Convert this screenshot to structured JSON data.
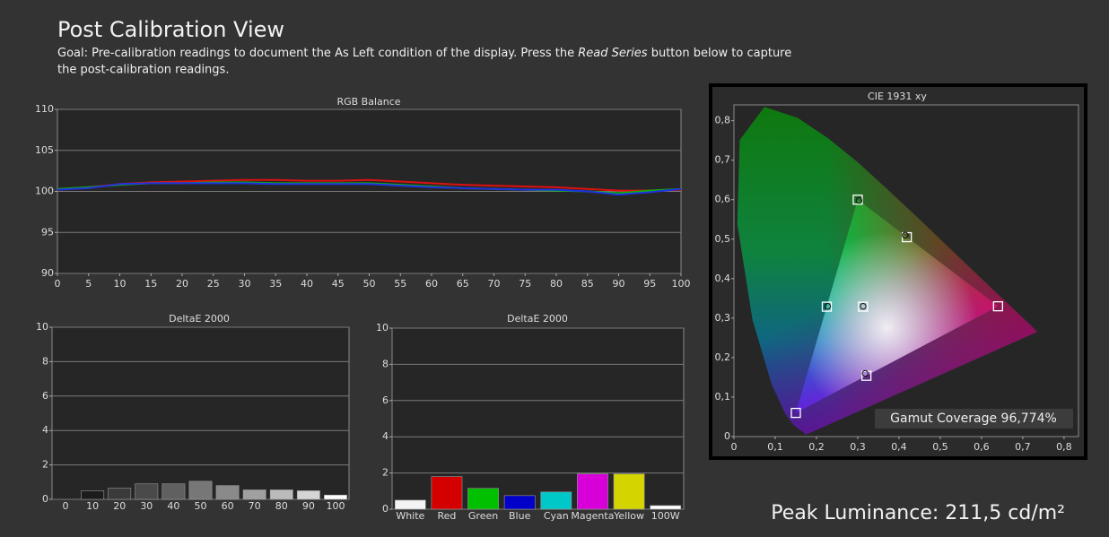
{
  "header": {
    "title": "Post Calibration View",
    "goal": [
      "Goal: Pre-calibration readings to document the As Left condition of the display. Press the ",
      "Read Series",
      " button below to capture",
      "the post-calibration readings."
    ],
    "peak_luminance": "Peak Luminance: 211,5 cd/m²"
  },
  "chart_data": [
    {
      "type": "line",
      "title": "RGB Balance",
      "x": [
        0,
        5,
        10,
        15,
        20,
        25,
        30,
        35,
        40,
        45,
        50,
        55,
        60,
        65,
        70,
        75,
        80,
        85,
        90,
        95,
        100
      ],
      "xlim": [
        0,
        100
      ],
      "xticks": [
        0,
        5,
        10,
        15,
        20,
        25,
        30,
        35,
        40,
        45,
        50,
        55,
        60,
        65,
        70,
        75,
        80,
        85,
        90,
        95,
        100
      ],
      "ylim": [
        90,
        110
      ],
      "yticks": [
        90,
        95,
        100,
        105,
        110
      ],
      "grid": true,
      "series": [
        {
          "color": "#e01010",
          "values": [
            100.2,
            100.5,
            100.9,
            101.1,
            101.2,
            101.3,
            101.4,
            101.4,
            101.3,
            101.3,
            101.4,
            101.2,
            101.0,
            100.8,
            100.7,
            100.6,
            100.5,
            100.3,
            100.1,
            100.1,
            100.2
          ]
        },
        {
          "color": "#10b010",
          "values": [
            100.3,
            100.5,
            100.8,
            101.0,
            101.0,
            101.1,
            101.1,
            101.0,
            101.0,
            101.0,
            101.0,
            100.8,
            100.6,
            100.4,
            100.3,
            100.2,
            100.1,
            100.0,
            99.8,
            100.1,
            100.3
          ]
        },
        {
          "color": "#2030e0",
          "values": [
            100.2,
            100.4,
            100.9,
            101.0,
            101.0,
            101.0,
            101.0,
            100.9,
            100.9,
            100.9,
            100.9,
            100.7,
            100.5,
            100.4,
            100.3,
            100.2,
            100.2,
            100.0,
            99.6,
            99.9,
            100.3
          ]
        }
      ]
    },
    {
      "type": "bar",
      "title": "DeltaE 2000",
      "categories": [
        "0",
        "10",
        "20",
        "30",
        "40",
        "50",
        "60",
        "70",
        "80",
        "90",
        "100"
      ],
      "values": [
        0,
        0.5,
        0.65,
        0.9,
        0.9,
        1.05,
        0.8,
        0.55,
        0.55,
        0.5,
        0.25
      ],
      "colors": [
        "#111111",
        "#1c1c1c",
        "#3a3a3a",
        "#4a4a4a",
        "#606060",
        "#777777",
        "#8a8a8a",
        "#a0a0a0",
        "#bbbbbb",
        "#d5d5d5",
        "#ffffff"
      ],
      "ylim": [
        0,
        10
      ],
      "yticks": [
        0,
        2,
        4,
        6,
        8,
        10
      ],
      "grid": true
    },
    {
      "type": "bar",
      "title": "DeltaE 2000",
      "categories": [
        "White",
        "Red",
        "Green",
        "Blue",
        "Cyan",
        "Magenta",
        "Yellow",
        "100W"
      ],
      "values": [
        0.5,
        1.8,
        1.15,
        0.75,
        0.95,
        1.95,
        1.95,
        0.2
      ],
      "colors": [
        "#f4f4f4",
        "#d40000",
        "#00c000",
        "#0000c8",
        "#00c8c8",
        "#d800d8",
        "#d4d400",
        "#ffffff"
      ],
      "ylim": [
        0,
        10
      ],
      "yticks": [
        0,
        2,
        4,
        6,
        8,
        10
      ],
      "grid": true
    },
    {
      "type": "scatter",
      "title": "CIE 1931 xy",
      "xlim": [
        0,
        0.835
      ],
      "ylim": [
        0,
        0.84
      ],
      "grid": false,
      "gamut_triangle": true,
      "xticks": [
        0,
        {
          "value": 0.1,
          "label": "0,1"
        },
        {
          "value": 0.2,
          "label": "0,2"
        },
        {
          "value": 0.3,
          "label": "0,3"
        },
        {
          "value": 0.4,
          "label": "0,4"
        },
        {
          "value": 0.5,
          "label": "0,5"
        },
        {
          "value": 0.6,
          "label": "0,6"
        },
        {
          "value": 0.7,
          "label": "0,7"
        },
        {
          "value": 0.8,
          "label": "0,8"
        }
      ],
      "yticks": [
        0,
        {
          "value": 0.1,
          "label": "0,1"
        },
        {
          "value": 0.2,
          "label": "0,2"
        },
        {
          "value": 0.3,
          "label": "0,3"
        },
        {
          "value": 0.4,
          "label": "0,4"
        },
        {
          "value": 0.5,
          "label": "0,5"
        },
        {
          "value": 0.6,
          "label": "0,6"
        },
        {
          "value": 0.7,
          "label": "0,7"
        },
        {
          "value": 0.8,
          "label": "0,8"
        }
      ],
      "series": [
        {
          "marker": "square",
          "color": "#ffffff",
          "x": [
            0.64,
            0.3,
            0.15,
            0.3127,
            0.225,
            0.419,
            0.321
          ],
          "y": [
            0.33,
            0.6,
            0.06,
            0.329,
            0.329,
            0.505,
            0.154
          ]
        },
        {
          "marker": "circle",
          "color": "#111111",
          "x": [
            0.303,
            0.415,
            0.227,
            0.313,
            0.318
          ],
          "y": [
            0.598,
            0.51,
            0.33,
            0.33,
            0.16
          ]
        }
      ],
      "annotation": "Gamut Coverage 96,774%"
    }
  ]
}
